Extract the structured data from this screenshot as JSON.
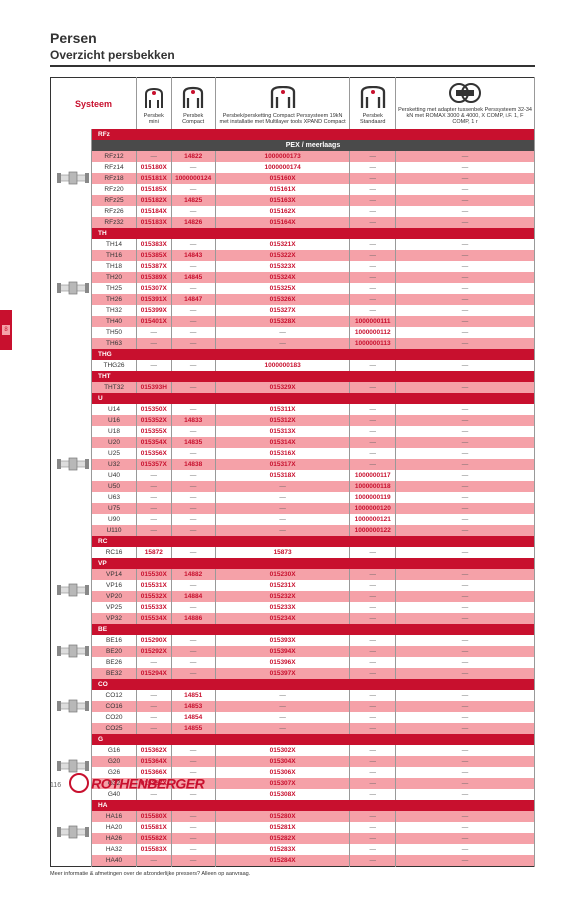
{
  "titles": {
    "h1": "Persen",
    "h2": "Overzicht persbekken"
  },
  "page_num": "116",
  "brand": "ROTHENBERGER",
  "note": "Meer informatie & afmetingen over de afzonderlijke pressers? Alleen op aanvraag.",
  "headers": {
    "systeem": "Systeem",
    "col1": "Persbek\nmini",
    "col2": "Persbek Compact",
    "col3": "Persbek/persketting\nCompact\nPerssysteem 19kN met installatie\nmet Multilayer tools XPAND\nCompact",
    "col4": "Persbek Standaard",
    "col5": "Persketting met adapter\ntussenbek\nPerssysteem 32-34 kN\nmet ROMAX 3000 & 4000, X\nCOMP, i.F. 1, F\nCOMP, 1\nr"
  },
  "section": "PEX / meerlaags",
  "groups": [
    {
      "cat": "RFz",
      "img": "pipe-a",
      "rows": [
        {
          "s": "RFz12",
          "v": [
            "—",
            "14822",
            "1000000173",
            "—"
          ],
          "c": "l"
        },
        {
          "s": "RFz14",
          "v": [
            "015180X",
            "—",
            "1000000174",
            "—"
          ],
          "c": "d"
        },
        {
          "s": "RFz18",
          "v": [
            "015181X",
            "1000000124",
            "015160X",
            "—"
          ],
          "c": "l"
        },
        {
          "s": "RFz20",
          "v": [
            "015185X",
            "—",
            "015161X",
            "—"
          ],
          "c": "d"
        },
        {
          "s": "RFz25",
          "v": [
            "015182X",
            "14825",
            "015163X",
            "—"
          ],
          "c": "l"
        },
        {
          "s": "RFz26",
          "v": [
            "015184X",
            "—",
            "015162X",
            "—"
          ],
          "c": "d"
        },
        {
          "s": "RFz32",
          "v": [
            "015183X",
            "14826",
            "015164X",
            "—"
          ],
          "c": "l"
        }
      ]
    },
    {
      "cat": "TH",
      "img": "pipe-b",
      "rows": [
        {
          "s": "TH14",
          "v": [
            "015383X",
            "—",
            "015321X",
            "—"
          ],
          "c": "d"
        },
        {
          "s": "TH16",
          "v": [
            "015385X",
            "14843",
            "015322X",
            "—"
          ],
          "c": "l"
        },
        {
          "s": "TH18",
          "v": [
            "015387X",
            "—",
            "015323X",
            "—"
          ],
          "c": "d"
        },
        {
          "s": "TH20",
          "v": [
            "015389X",
            "14845",
            "015324X",
            "—"
          ],
          "c": "l"
        },
        {
          "s": "TH25",
          "v": [
            "015307X",
            "—",
            "015325X",
            "—"
          ],
          "c": "d"
        },
        {
          "s": "TH26",
          "v": [
            "015391X",
            "14847",
            "015326X",
            "—"
          ],
          "c": "l"
        },
        {
          "s": "TH32",
          "v": [
            "015399X",
            "—",
            "015327X",
            "—"
          ],
          "c": "d"
        },
        {
          "s": "TH40",
          "v": [
            "015401X",
            "—",
            "015328X",
            "1000000111"
          ],
          "c": "l"
        },
        {
          "s": "TH50",
          "v": [
            "—",
            "—",
            "—",
            "1000000112"
          ],
          "c": "d"
        },
        {
          "s": "TH63",
          "v": [
            "—",
            "—",
            "—",
            "1000000113"
          ],
          "c": "l"
        }
      ]
    },
    {
      "cat": "THG",
      "rows": [
        {
          "s": "THG26",
          "v": [
            "—",
            "—",
            "1000000183",
            "—"
          ],
          "c": "d"
        }
      ]
    },
    {
      "cat": "THT",
      "rows": [
        {
          "s": "THT32",
          "v": [
            "015393H",
            "—",
            "015329X",
            "—"
          ],
          "c": "l"
        }
      ]
    },
    {
      "cat": "U",
      "img": "pipe-c",
      "rows": [
        {
          "s": "U14",
          "v": [
            "015350X",
            "—",
            "015311X",
            "—"
          ],
          "c": "d"
        },
        {
          "s": "U16",
          "v": [
            "015352X",
            "14833",
            "015312X",
            "—"
          ],
          "c": "l"
        },
        {
          "s": "U18",
          "v": [
            "015355X",
            "—",
            "015313X",
            "—"
          ],
          "c": "d"
        },
        {
          "s": "U20",
          "v": [
            "015354X",
            "14835",
            "015314X",
            "—"
          ],
          "c": "l"
        },
        {
          "s": "U25",
          "v": [
            "015356X",
            "—",
            "015316X",
            "—"
          ],
          "c": "d"
        },
        {
          "s": "U32",
          "v": [
            "015357X",
            "14838",
            "015317X",
            "—"
          ],
          "c": "l"
        },
        {
          "s": "U40",
          "v": [
            "—",
            "—",
            "015318X",
            "1000000117"
          ],
          "c": "d"
        },
        {
          "s": "U50",
          "v": [
            "—",
            "—",
            "—",
            "1000000118"
          ],
          "c": "l"
        },
        {
          "s": "U63",
          "v": [
            "—",
            "—",
            "—",
            "1000000119"
          ],
          "c": "d"
        },
        {
          "s": "U75",
          "v": [
            "—",
            "—",
            "—",
            "1000000120"
          ],
          "c": "l"
        },
        {
          "s": "U90",
          "v": [
            "—",
            "—",
            "—",
            "1000000121"
          ],
          "c": "d"
        },
        {
          "s": "U110",
          "v": [
            "—",
            "—",
            "—",
            "1000000122"
          ],
          "c": "l"
        }
      ]
    },
    {
      "cat": "RC",
      "rows": [
        {
          "s": "RC16",
          "v": [
            "15872",
            "—",
            "15873",
            "—"
          ],
          "c": "d"
        }
      ]
    },
    {
      "cat": "VP",
      "img": "pipe-d",
      "rows": [
        {
          "s": "VP14",
          "v": [
            "015530X",
            "14882",
            "015230X",
            "—"
          ],
          "c": "l"
        },
        {
          "s": "VP16",
          "v": [
            "015531X",
            "—",
            "015231X",
            "—"
          ],
          "c": "d"
        },
        {
          "s": "VP20",
          "v": [
            "015532X",
            "14884",
            "015232X",
            "—"
          ],
          "c": "l"
        },
        {
          "s": "VP25",
          "v": [
            "015533X",
            "—",
            "015233X",
            "—"
          ],
          "c": "d"
        },
        {
          "s": "VP32",
          "v": [
            "015534X",
            "14886",
            "015234X",
            "—"
          ],
          "c": "l"
        }
      ]
    },
    {
      "cat": "BE",
      "img": "pipe-e",
      "rows": [
        {
          "s": "BE16",
          "v": [
            "015290X",
            "—",
            "015393X",
            "—"
          ],
          "c": "d"
        },
        {
          "s": "BE20",
          "v": [
            "015292X",
            "—",
            "015394X",
            "—"
          ],
          "c": "l"
        },
        {
          "s": "BE26",
          "v": [
            "—",
            "—",
            "015396X",
            "—"
          ],
          "c": "d"
        },
        {
          "s": "BE32",
          "v": [
            "015294X",
            "—",
            "015397X",
            "—"
          ],
          "c": "l"
        }
      ]
    },
    {
      "cat": "CO",
      "img": "pipe-f",
      "rows": [
        {
          "s": "CO12",
          "v": [
            "—",
            "14851",
            "—",
            "—"
          ],
          "c": "d"
        },
        {
          "s": "CO16",
          "v": [
            "—",
            "14853",
            "—",
            "—"
          ],
          "c": "l"
        },
        {
          "s": "CO20",
          "v": [
            "—",
            "14854",
            "—",
            "—"
          ],
          "c": "d"
        },
        {
          "s": "CO25",
          "v": [
            "—",
            "14855",
            "—",
            "—"
          ],
          "c": "l"
        }
      ]
    },
    {
      "cat": "G",
      "img": "pipe-g",
      "rows": [
        {
          "s": "G16",
          "v": [
            "015362X",
            "—",
            "015302X",
            "—"
          ],
          "c": "d"
        },
        {
          "s": "G20",
          "v": [
            "015364X",
            "—",
            "015304X",
            "—"
          ],
          "c": "l"
        },
        {
          "s": "G26",
          "v": [
            "015366X",
            "—",
            "015306X",
            "—"
          ],
          "c": "d"
        },
        {
          "s": "G32",
          "v": [
            "015367X",
            "—",
            "015307X",
            "—"
          ],
          "c": "l"
        },
        {
          "s": "G40",
          "v": [
            "—",
            "—",
            "015308X",
            "—"
          ],
          "c": "d"
        }
      ]
    },
    {
      "cat": "HA",
      "img": "pipe-h",
      "rows": [
        {
          "s": "HA16",
          "v": [
            "015580X",
            "—",
            "015280X",
            "—"
          ],
          "c": "l"
        },
        {
          "s": "HA20",
          "v": [
            "015581X",
            "—",
            "015281X",
            "—"
          ],
          "c": "d"
        },
        {
          "s": "HA26",
          "v": [
            "015582X",
            "—",
            "015282X",
            "—"
          ],
          "c": "l"
        },
        {
          "s": "HA32",
          "v": [
            "015583X",
            "—",
            "015283X",
            "—"
          ],
          "c": "d"
        },
        {
          "s": "HA40",
          "v": [
            "—",
            "—",
            "015284X",
            "—"
          ],
          "c": "l"
        }
      ]
    }
  ]
}
